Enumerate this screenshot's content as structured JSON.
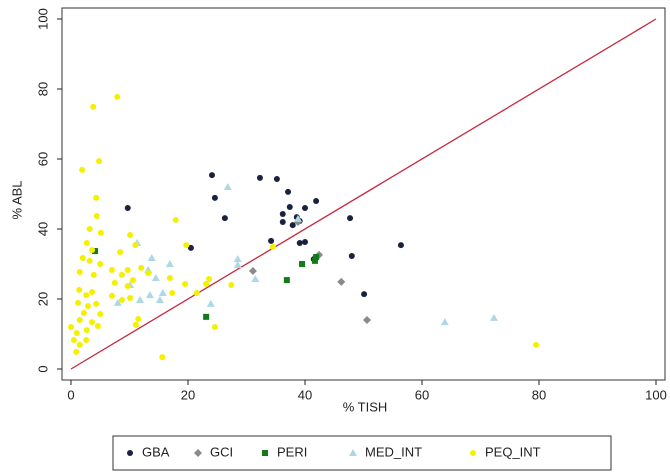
{
  "chart_data": {
    "type": "scatter",
    "x_label": "% TISH",
    "y_label": "% ABL",
    "xlim": [
      0,
      100
    ],
    "ylim": [
      0,
      100
    ],
    "xticks": [
      0,
      20,
      40,
      60,
      80,
      100
    ],
    "yticks": [
      0,
      20,
      40,
      60,
      80,
      100
    ],
    "reference_line_color": "#c8283c",
    "legend": "bottom",
    "series": [
      {
        "name": "GBA",
        "color": "#1b2240",
        "marker": "circle",
        "x": [
          9.7,
          20.5,
          24.1,
          24.6,
          26.3,
          32.3,
          35.2,
          36.2,
          36.2,
          37.1,
          37.4,
          37.9,
          38.6,
          39.1,
          40,
          39.1,
          40,
          41.9,
          41.5,
          34.2,
          47.7,
          48,
          50.1,
          56.4,
          41.9
        ],
        "y": [
          46,
          34.6,
          55.4,
          48.9,
          43.1,
          54.6,
          54.3,
          44.3,
          42,
          50.6,
          46.3,
          41.1,
          43.4,
          42.3,
          46,
          36,
          36.3,
          48,
          31.4,
          36.6,
          43.1,
          32.3,
          21.4,
          35.4,
          31.7
        ]
      },
      {
        "name": "GCI",
        "color": "#8a8a8a",
        "marker": "diamond",
        "x": [
          31.1,
          38.8,
          42.4,
          46.2,
          50.6
        ],
        "y": [
          28,
          42,
          32.6,
          24.9,
          14
        ]
      },
      {
        "name": "PERI",
        "color": "#137a1c",
        "marker": "square",
        "x": [
          4.1,
          23.1,
          36.9,
          39.5,
          41.9,
          41.7
        ],
        "y": [
          33.7,
          14.9,
          25.4,
          30,
          32,
          30.9
        ]
      },
      {
        "name": "MED_INT",
        "color": "#add8e6",
        "marker": "triangle",
        "x": [
          26.8,
          28.5,
          28.5,
          31.5,
          23.9,
          11.3,
          13.8,
          13.2,
          13.5,
          14.5,
          15.2,
          15.7,
          16.9,
          10.1,
          8,
          11.8,
          63.9,
          72.3,
          38.8
        ],
        "y": [
          52,
          31.4,
          29.7,
          25.7,
          18.6,
          36,
          31.7,
          28.3,
          21.1,
          26,
          19.7,
          21.7,
          30,
          24,
          18.9,
          19.7,
          13.4,
          14.6,
          42.9
        ]
      },
      {
        "name": "PEQ_INT",
        "color": "#f5f000",
        "marker": "circle",
        "x": [
          3.8,
          7.9,
          1.9,
          4.8,
          4.3,
          4.4,
          3.2,
          5.1,
          10.1,
          11,
          2.7,
          3.6,
          8.4,
          2,
          3.2,
          5,
          1.5,
          3.9,
          7,
          8.7,
          9.7,
          12,
          13.2,
          7.5,
          9.7,
          10.6,
          1.4,
          2.6,
          3.6,
          7,
          8.7,
          10.1,
          1.2,
          2.9,
          4.3,
          2.2,
          5,
          1.5,
          3.6,
          4.6,
          0,
          1,
          2.7,
          0.5,
          1.5,
          0.9,
          2.6,
          11.5,
          11.1,
          17.3,
          17.9,
          19.7,
          19.5,
          23.1,
          23.6,
          24.6,
          27.4,
          16.9,
          15.6,
          79.5,
          34.5,
          21.5
        ],
        "y": [
          74.9,
          77.7,
          56.9,
          59.4,
          48.9,
          43.7,
          40,
          38.9,
          38.3,
          35.4,
          36,
          34,
          33.4,
          31.7,
          30.9,
          30,
          27.7,
          26.9,
          28.3,
          26.9,
          28.3,
          28.9,
          27.4,
          24.6,
          23.7,
          25.4,
          22.6,
          21.1,
          22,
          20.9,
          19.7,
          20.3,
          18.9,
          18,
          18.6,
          16,
          15.7,
          14,
          13.4,
          12.3,
          12,
          10.3,
          11.1,
          8.3,
          6.9,
          4.9,
          8.3,
          14.3,
          12.6,
          21.7,
          42.6,
          35.4,
          24.3,
          24.3,
          25.7,
          12,
          24,
          26,
          3.4,
          6.9,
          34.9,
          21.7
        ]
      }
    ]
  }
}
